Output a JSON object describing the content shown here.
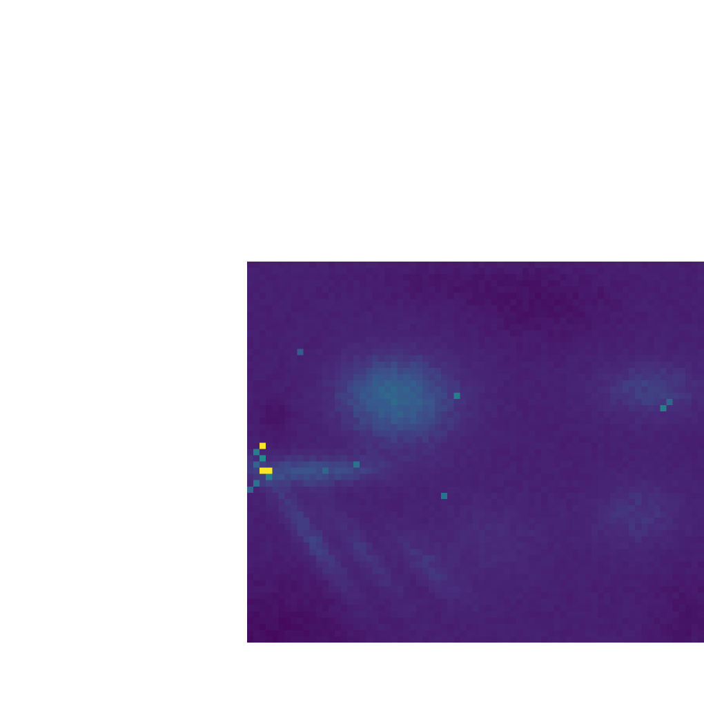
{
  "image": {
    "kind": "false-color scalar field",
    "colormap": "viridis",
    "grid": {
      "cols": 73,
      "rows": 61
    },
    "palette": {
      "dark": "#440154",
      "deep_purple": "#471a6e",
      "indigo": "#472c7a",
      "slate_blue": "#3b4f8b",
      "teal": "#2e6f8e",
      "green_teal": "#21918c",
      "bright": "#fde725"
    }
  }
}
